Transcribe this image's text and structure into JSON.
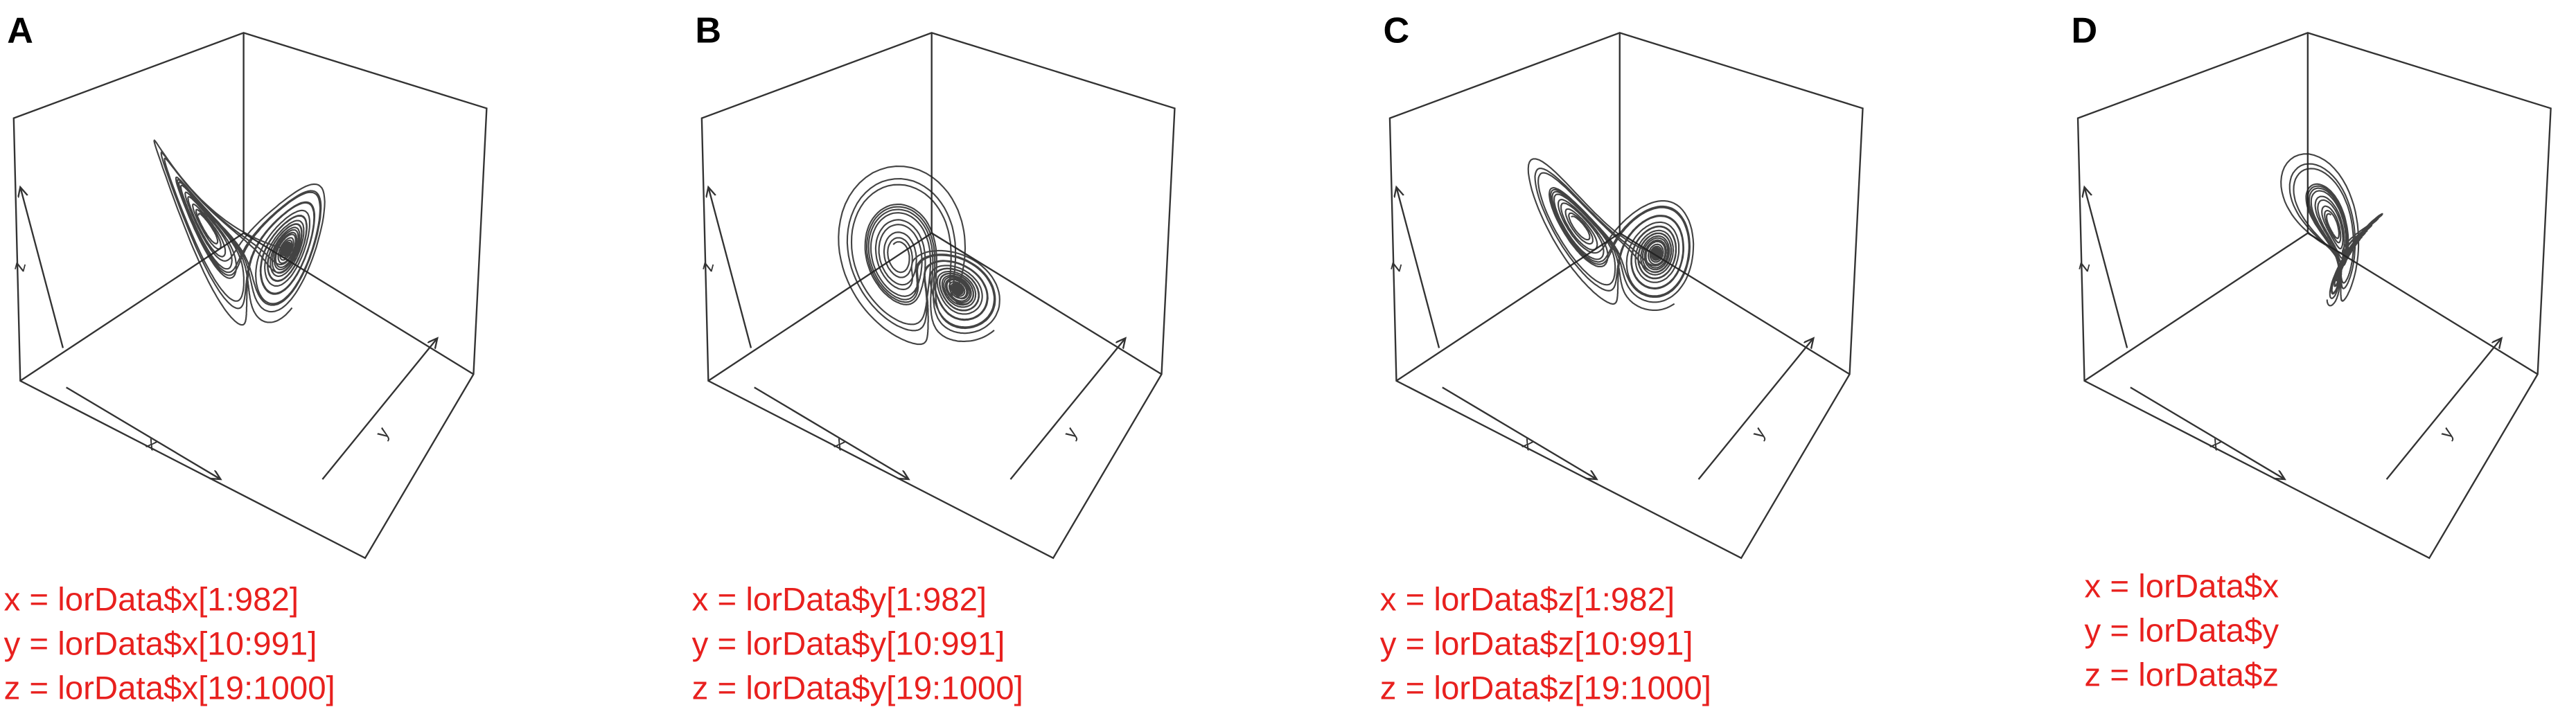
{
  "panels": [
    {
      "label": "A",
      "axis_labels": {
        "x": "x",
        "y": "y",
        "z": "z"
      },
      "caption": [
        "x = lorData$x[1:982]",
        "y = lorData$x[10:991]",
        "z = lorData$x[19:1000]"
      ]
    },
    {
      "label": "B",
      "axis_labels": {
        "x": "x",
        "y": "y",
        "z": "z"
      },
      "caption": [
        "x = lorData$y[1:982]",
        "y = lorData$y[10:991]",
        "z = lorData$y[19:1000]"
      ]
    },
    {
      "label": "C",
      "axis_labels": {
        "x": "x",
        "y": "y",
        "z": "z"
      },
      "caption": [
        "x = lorData$z[1:982]",
        "y = lorData$z[10:991]",
        "z = lorData$z[19:1000]"
      ]
    },
    {
      "label": "D",
      "axis_labels": {
        "x": "x",
        "y": "y",
        "z": "z"
      },
      "caption": [
        "x = lorData$x",
        "y = lorData$y",
        "z = lorData$z"
      ]
    }
  ]
}
